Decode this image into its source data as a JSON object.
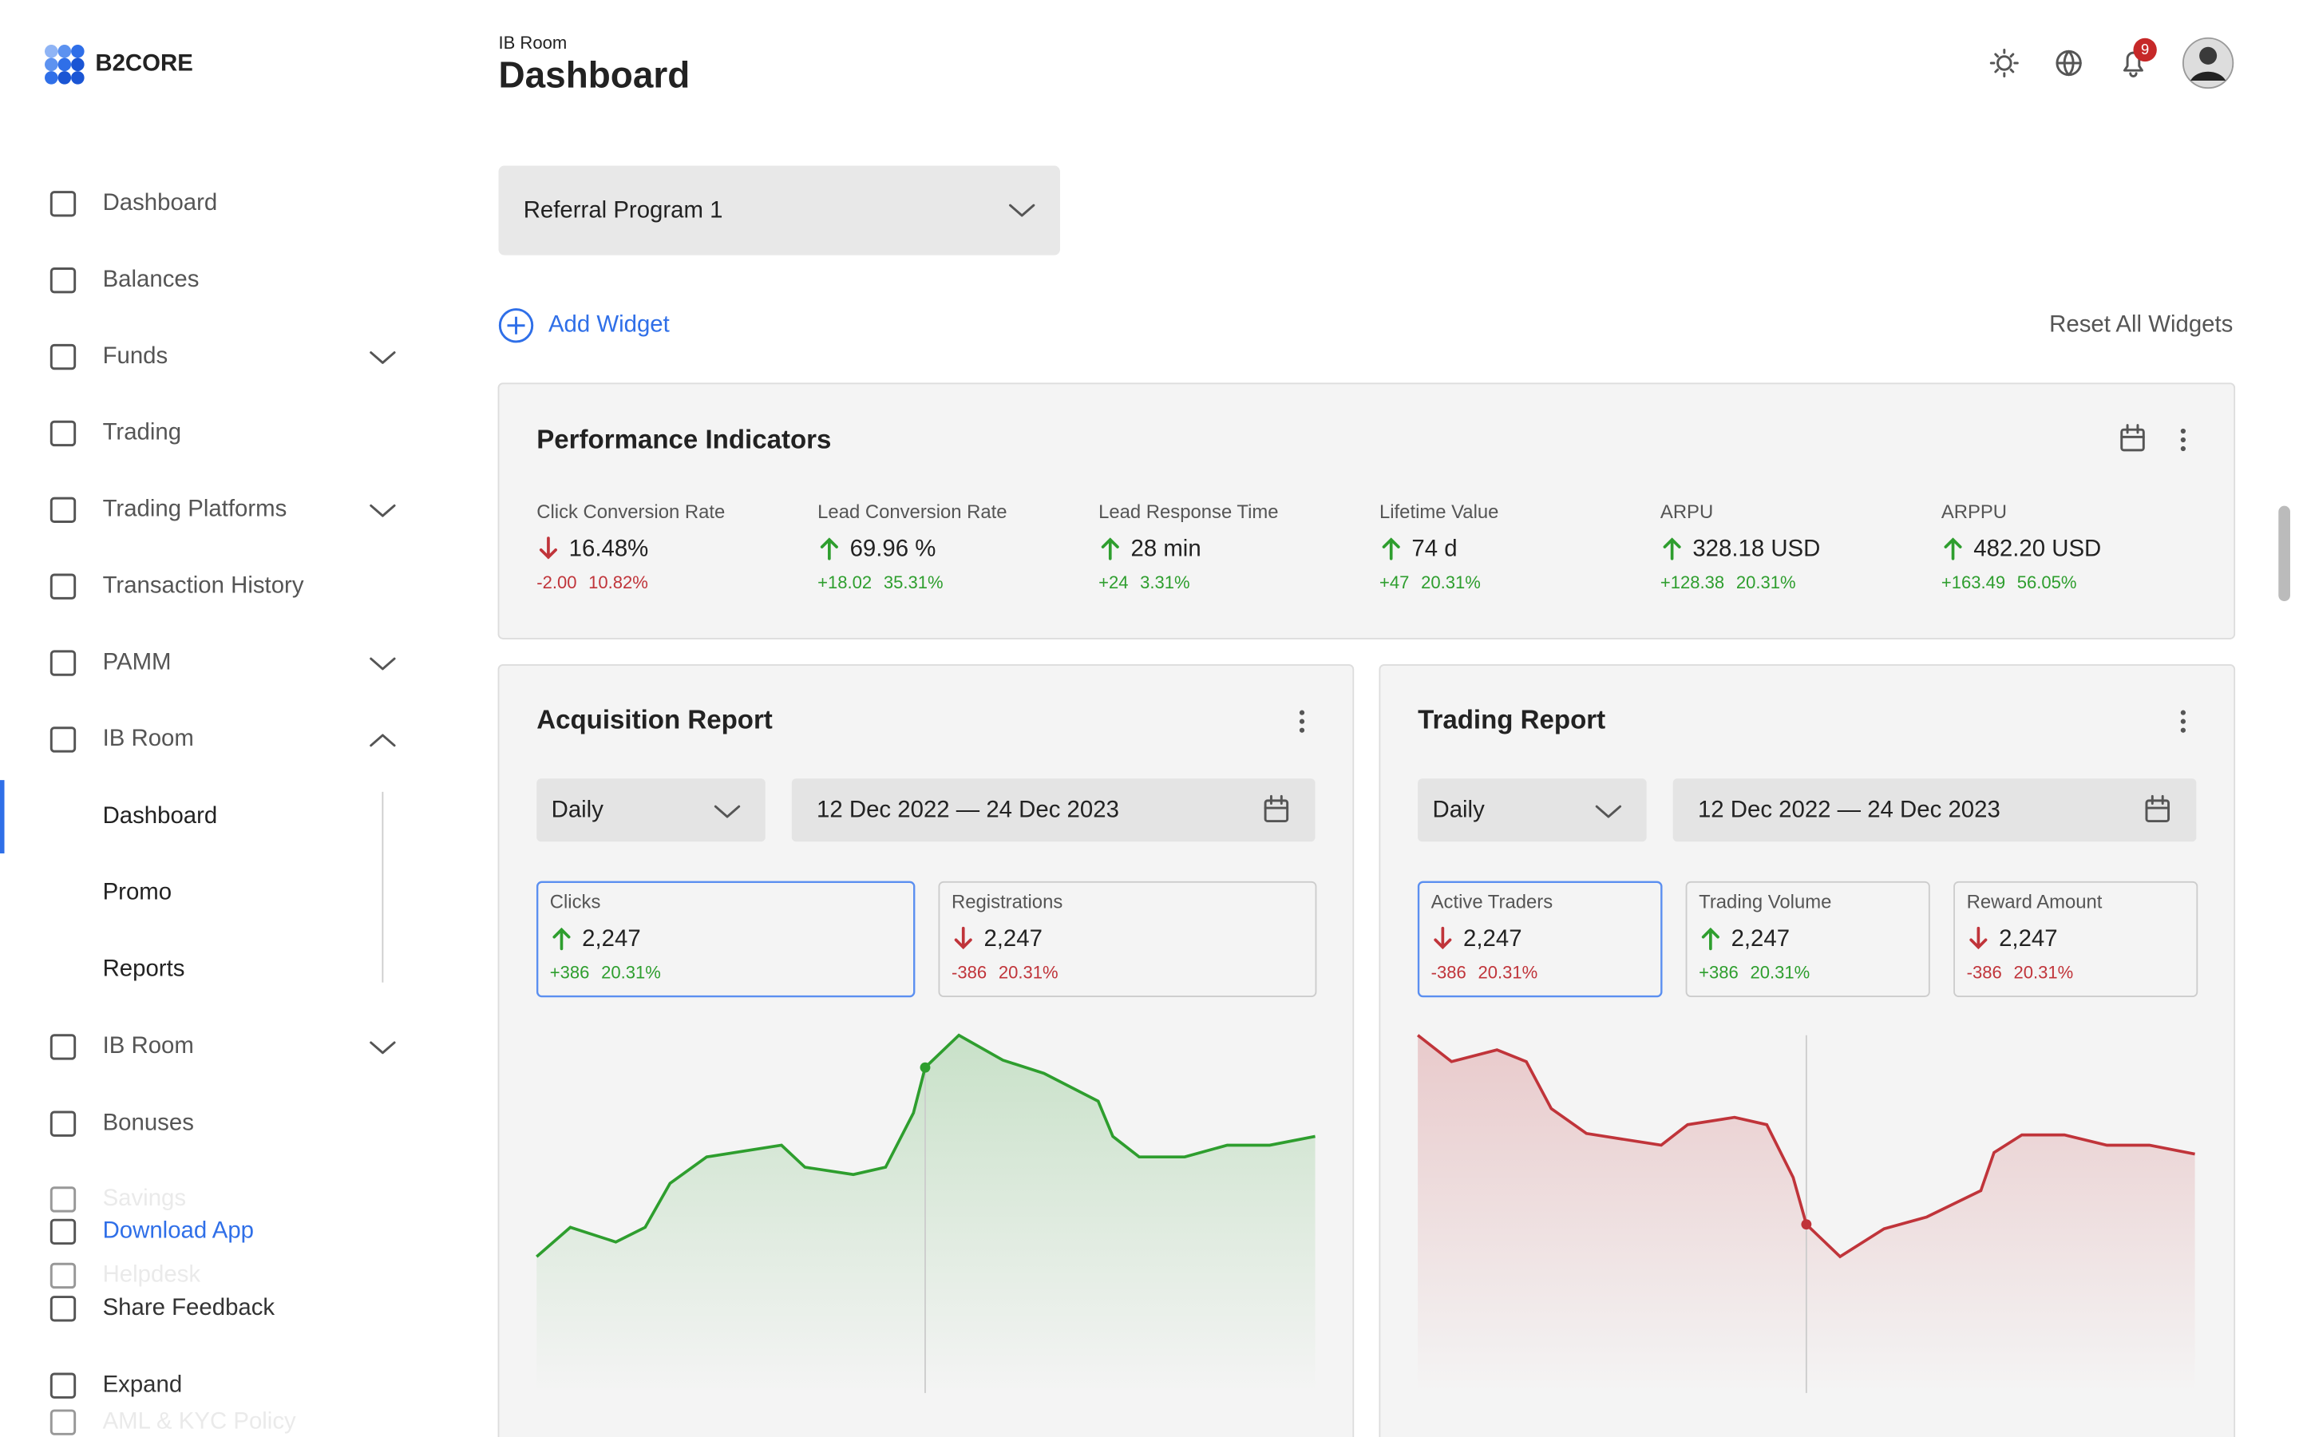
{
  "brand": "B2CORE",
  "sidebar": {
    "items": [
      {
        "label": "Dashboard",
        "expand": null
      },
      {
        "label": "Balances",
        "expand": null
      },
      {
        "label": "Funds",
        "expand": "closed"
      },
      {
        "label": "Trading",
        "expand": null
      },
      {
        "label": "Trading Platforms",
        "expand": "closed"
      },
      {
        "label": "Transaction History",
        "expand": null
      },
      {
        "label": "PAMM",
        "expand": "closed"
      },
      {
        "label": "IB Room",
        "expand": "open"
      }
    ],
    "sub_items": [
      "Dashboard",
      "Promo",
      "Reports"
    ],
    "items_after": [
      {
        "label": "IB Room",
        "expand": "closed"
      },
      {
        "label": "Bonuses",
        "expand": null
      }
    ],
    "faded_items": [
      "Savings",
      "Helpdesk",
      "AML & KYC Policy"
    ],
    "footer_items": [
      "Download App",
      "Share Feedback",
      "Expand"
    ]
  },
  "header": {
    "breadcrumb": "IB Room",
    "title": "Dashboard",
    "notifications": "9"
  },
  "program_select": "Referral Program 1",
  "add_widget": "Add Widget",
  "reset_widgets": "Reset All Widgets",
  "performance": {
    "title": "Performance Indicators",
    "indicators": [
      {
        "label": "Click Conversion Rate",
        "value": "16.48%",
        "change": "-2.00",
        "percent": "10.82%",
        "trend": "down"
      },
      {
        "label": "Lead Conversion Rate",
        "value": "69.96 %",
        "change": "+18.02",
        "percent": "35.31%",
        "trend": "up"
      },
      {
        "label": "Lead Response Time",
        "value": "28 min",
        "change": "+24",
        "percent": "3.31%",
        "trend": "up"
      },
      {
        "label": "Lifetime Value",
        "value": "74 d",
        "change": "+47",
        "percent": "20.31%",
        "trend": "up"
      },
      {
        "label": "ARPU",
        "value": "328.18 USD",
        "change": "+128.38",
        "percent": "20.31%",
        "trend": "up"
      },
      {
        "label": "ARPPU",
        "value": "482.20 USD",
        "change": "+163.49",
        "percent": "56.05%",
        "trend": "up"
      }
    ]
  },
  "reports": [
    {
      "title": "Acquisition Report",
      "period": "Daily",
      "range": "12 Dec 2022 — 24 Dec 2023",
      "trend": "up",
      "metrics": [
        {
          "label": "Clicks",
          "value": "2,247",
          "change": "+386",
          "percent": "20.31%",
          "trend": "up",
          "selected": true
        },
        {
          "label": "Registrations",
          "value": "2,247",
          "change": "-386",
          "percent": "20.31%",
          "trend": "down",
          "selected": false
        }
      ]
    },
    {
      "title": "Trading Report",
      "period": "Daily",
      "range": "12 Dec 2022 — 24 Dec 2023",
      "trend": "down",
      "metrics": [
        {
          "label": "Active Traders",
          "value": "2,247",
          "change": "-386",
          "percent": "20.31%",
          "trend": "down",
          "selected": true
        },
        {
          "label": "Trading Volume",
          "value": "2,247",
          "change": "+386",
          "percent": "20.31%",
          "trend": "up",
          "selected": false
        },
        {
          "label": "Reward Amount",
          "value": "2,247",
          "change": "-386",
          "percent": "20.31%",
          "trend": "down",
          "selected": false
        }
      ]
    }
  ]
}
